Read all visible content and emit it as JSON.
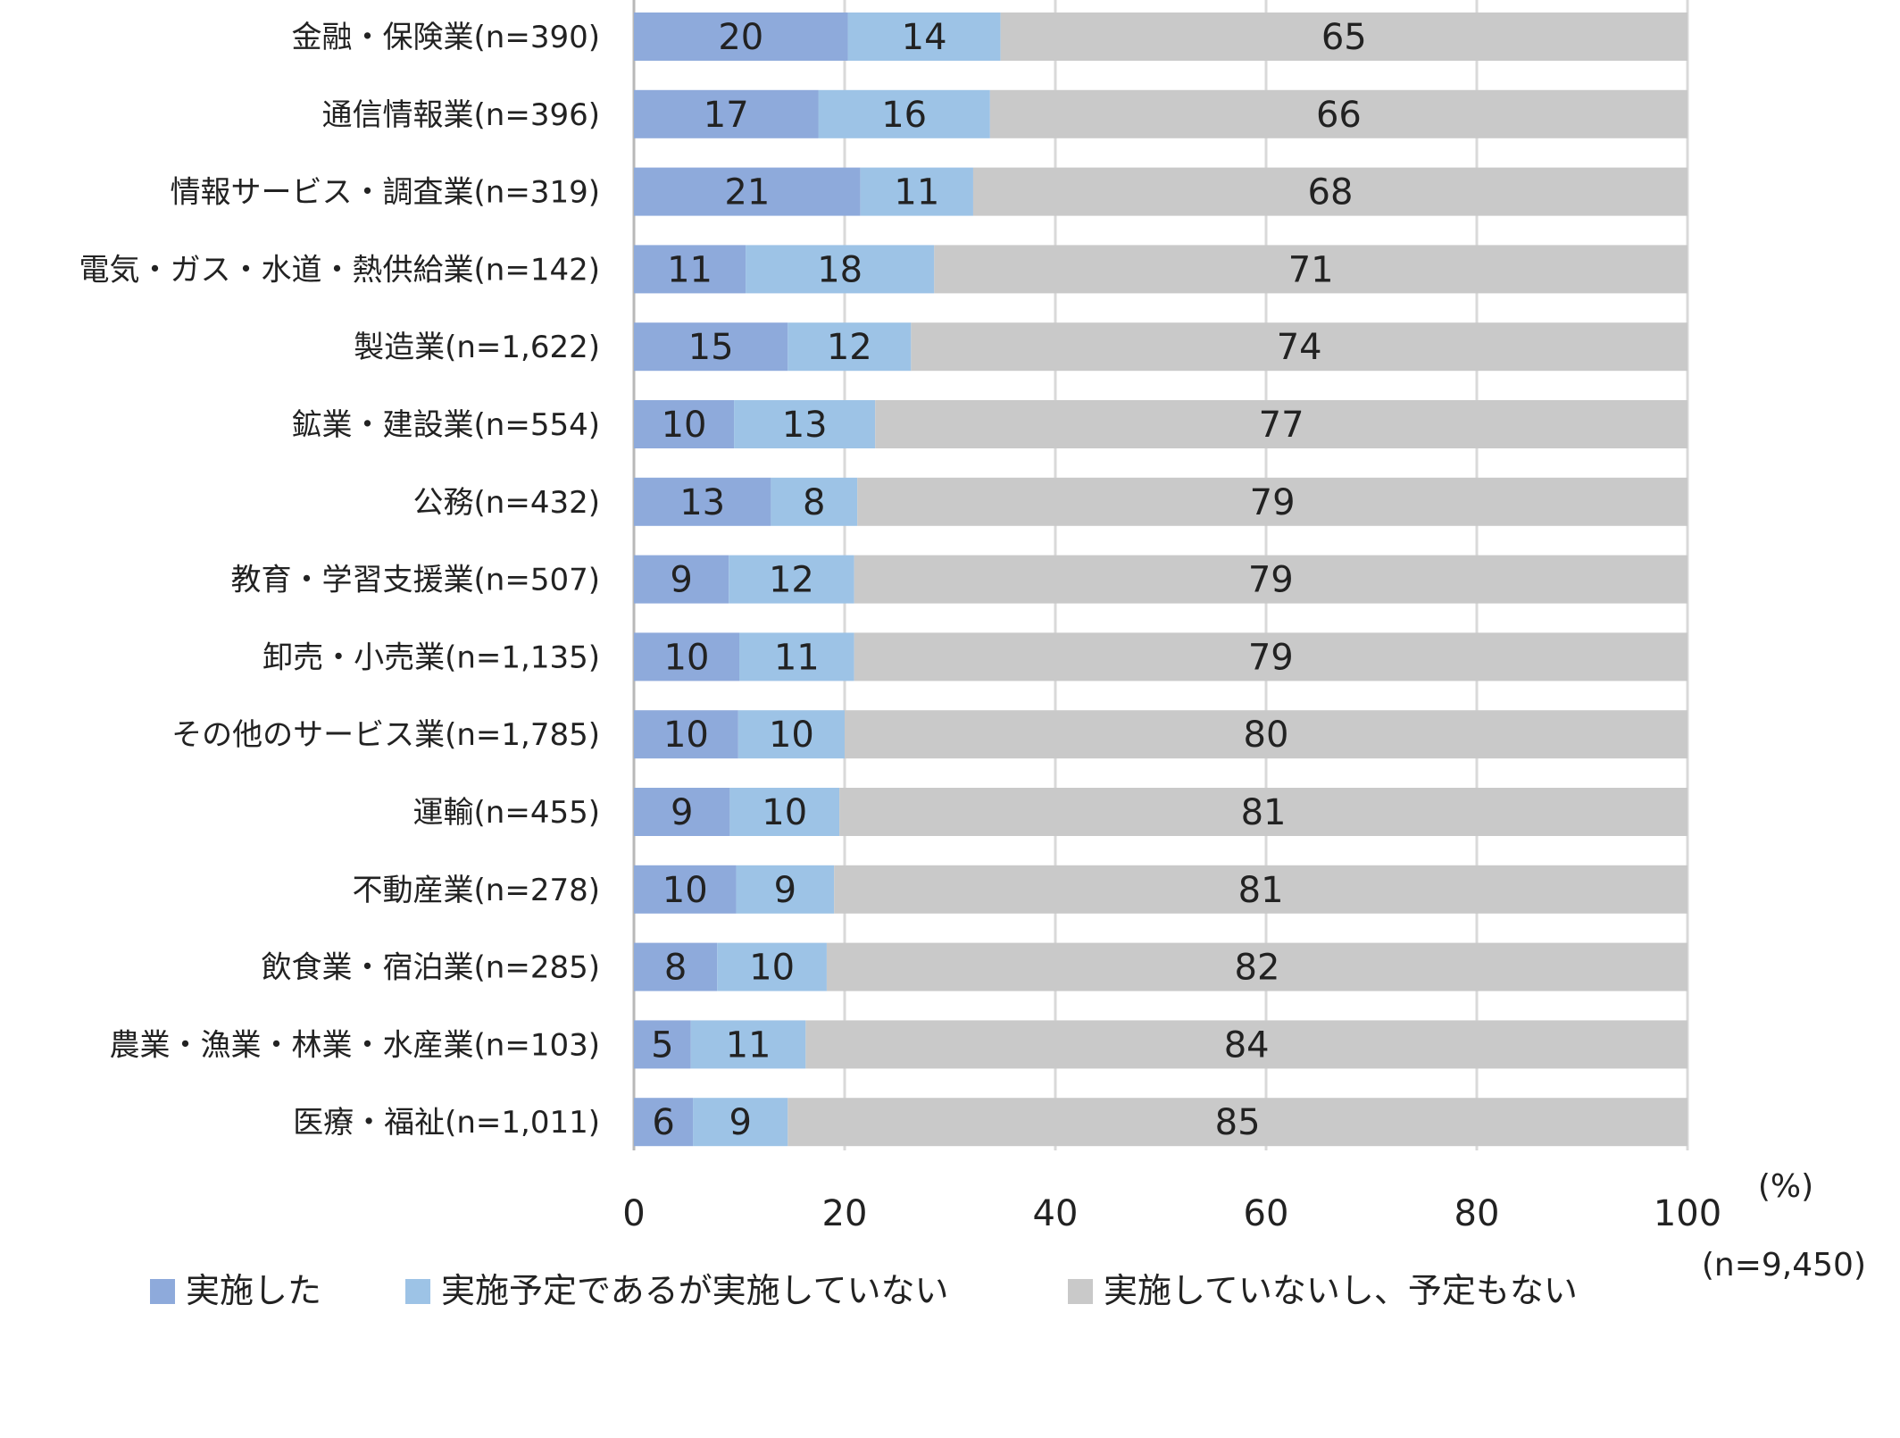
{
  "chart_data": {
    "type": "bar",
    "orientation": "horizontal",
    "stacked": true,
    "unit_label": "(%)",
    "sample_note": "(n=9,450)",
    "xlim": [
      0,
      100
    ],
    "x_ticks": [
      0,
      20,
      40,
      60,
      80,
      100
    ],
    "grid": true,
    "legend_position": "bottom",
    "categories": [
      "金融・保険業(n=390)",
      "通信情報業(n=396)",
      "情報サービス・調査業(n=319)",
      "電気・ガス・水道・熱供給業(n=142)",
      "製造業(n=1,622)",
      "鉱業・建設業(n=554)",
      "公務(n=432)",
      "教育・学習支援業(n=507)",
      "卸売・小売業(n=1,135)",
      "その他のサービス業(n=1,785)",
      "運輸(n=455)",
      "不動産業(n=278)",
      "飲食業・宿泊業(n=285)",
      "農業・漁業・林業・水産業(n=103)",
      "医療・福祉(n=1,011)"
    ],
    "series": [
      {
        "name": "実施した",
        "color": "#8eaadb",
        "values": [
          20.3,
          17.5,
          21.5,
          10.6,
          14.6,
          9.5,
          13.0,
          9.0,
          10.0,
          9.9,
          9.1,
          9.7,
          7.9,
          5.4,
          5.6
        ]
      },
      {
        "name": "実施予定であるが実施していない",
        "color": "#9dc3e6",
        "values": [
          14.5,
          16.3,
          10.7,
          17.9,
          11.7,
          13.4,
          8.2,
          11.9,
          10.9,
          10.1,
          10.4,
          9.3,
          10.4,
          10.9,
          9.0
        ]
      },
      {
        "name": "実施していないし、予定もない",
        "color": "#c9c9c9",
        "values": [
          65.2,
          66.2,
          67.8,
          71.5,
          73.7,
          77.1,
          78.8,
          79.1,
          79.1,
          80.0,
          80.5,
          81.0,
          81.7,
          83.7,
          85.4
        ]
      }
    ],
    "value_labels": [
      [
        20,
        14,
        65
      ],
      [
        17,
        16,
        66
      ],
      [
        21,
        11,
        68
      ],
      [
        11,
        18,
        71
      ],
      [
        15,
        12,
        74
      ],
      [
        10,
        13,
        77
      ],
      [
        13,
        8,
        79
      ],
      [
        9,
        12,
        79
      ],
      [
        10,
        11,
        79
      ],
      [
        10,
        10,
        80
      ],
      [
        9,
        10,
        81
      ],
      [
        10,
        9,
        81
      ],
      [
        8,
        10,
        82
      ],
      [
        5,
        11,
        84
      ],
      [
        6,
        9,
        85
      ]
    ]
  }
}
